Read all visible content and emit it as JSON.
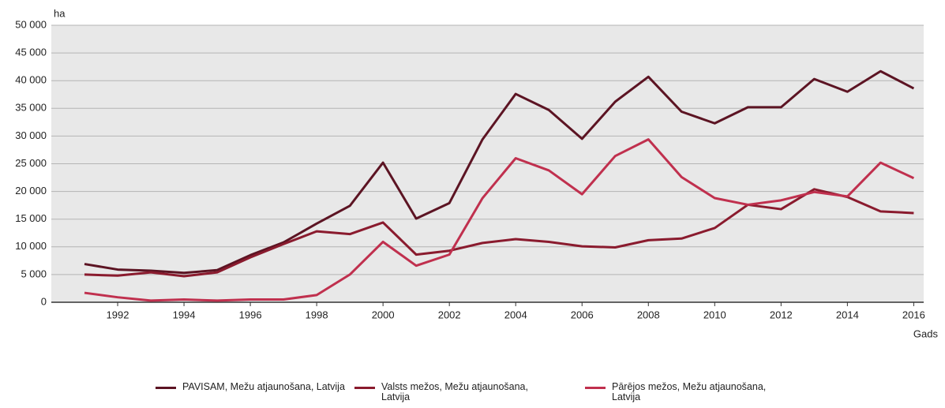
{
  "chart_data": {
    "type": "line",
    "y_label": "ha",
    "x_label": "Gads",
    "x": [
      1991,
      1992,
      1993,
      1994,
      1995,
      1996,
      1997,
      1998,
      1999,
      2000,
      2001,
      2002,
      2003,
      2004,
      2005,
      2006,
      2007,
      2008,
      2009,
      2010,
      2011,
      2012,
      2013,
      2014,
      2015,
      2016
    ],
    "series": [
      {
        "name": "PAVISAM, Mežu atjaunošana, Latvija",
        "color": "#5c1423",
        "values": [
          6900,
          5900,
          5700,
          5300,
          5800,
          8500,
          10800,
          14200,
          17400,
          25200,
          15100,
          17900,
          29400,
          37600,
          34700,
          29500,
          36200,
          40700,
          34400,
          32300,
          35200,
          35200,
          40300,
          38000,
          41700,
          38600
        ]
      },
      {
        "name": "Valsts mežos, Mežu atjaunošana, Latvija",
        "color": "#8a1b2e",
        "values": [
          5000,
          4800,
          5400,
          4700,
          5400,
          8100,
          10500,
          12800,
          12300,
          14400,
          8600,
          9300,
          10700,
          11400,
          10900,
          10100,
          9900,
          11200,
          11500,
          13400,
          17600,
          16800,
          20400,
          19000,
          16400,
          16100
        ]
      },
      {
        "name": "Pārējos mežos, Mežu atjaunošana, Latvija",
        "color": "#c0304e",
        "values": [
          1700,
          900,
          300,
          500,
          300,
          500,
          500,
          1300,
          5000,
          10900,
          6600,
          8600,
          18800,
          26000,
          23800,
          19500,
          26400,
          29400,
          22600,
          18800,
          17600,
          18400,
          19900,
          19100,
          25200,
          22400
        ]
      }
    ],
    "xlim": [
      1990,
      2016.3
    ],
    "xticks": [
      1992,
      1994,
      1996,
      1998,
      2000,
      2002,
      2004,
      2006,
      2008,
      2010,
      2012,
      2014,
      2016
    ],
    "ylim": [
      0,
      50000
    ],
    "yticks": [
      0,
      {
        "value": 5000,
        "label": "5 000"
      },
      {
        "value": 10000,
        "label": "10 000"
      },
      {
        "value": 15000,
        "label": "15 000"
      },
      {
        "value": 20000,
        "label": "20 000"
      },
      {
        "value": 25000,
        "label": "25 000"
      },
      {
        "value": 30000,
        "label": "30 000"
      },
      {
        "value": 35000,
        "label": "35 000"
      },
      {
        "value": 40000,
        "label": "40 000"
      },
      {
        "value": 45000,
        "label": "45 000"
      },
      {
        "value": 50000,
        "label": "50 000"
      }
    ],
    "grid": true,
    "legend": "bottom"
  }
}
